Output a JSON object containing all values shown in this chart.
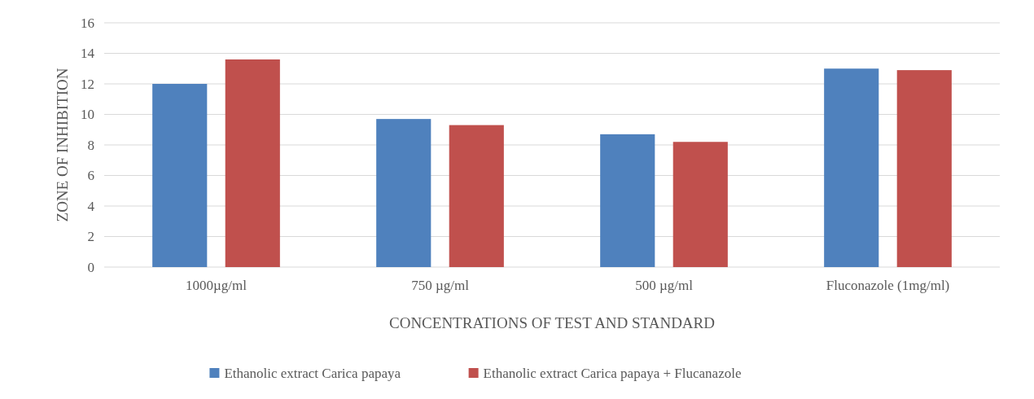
{
  "chart_data": {
    "type": "bar",
    "xlabel": "CONCENTRATIONS OF TEST AND STANDARD",
    "ylabel": "ZONE OF INHIBITION",
    "categories": [
      "1000µg/ml",
      "750 µg/ml",
      "500 µg/ml",
      "Fluconazole (1mg/ml)"
    ],
    "series": [
      {
        "name": "Ethanolic extract Carica papaya",
        "color": "#4f81bd",
        "values": [
          12,
          9.7,
          8.7,
          13
        ]
      },
      {
        "name": "Ethanolic extract Carica papaya + Flucanazole",
        "color": "#c0504d",
        "values": [
          13.6,
          9.3,
          8.2,
          12.9
        ]
      }
    ],
    "ylim": [
      0,
      16
    ],
    "yticks": [
      0,
      2,
      4,
      6,
      8,
      10,
      12,
      14,
      16
    ],
    "grid": "y",
    "legend": "bottom"
  }
}
